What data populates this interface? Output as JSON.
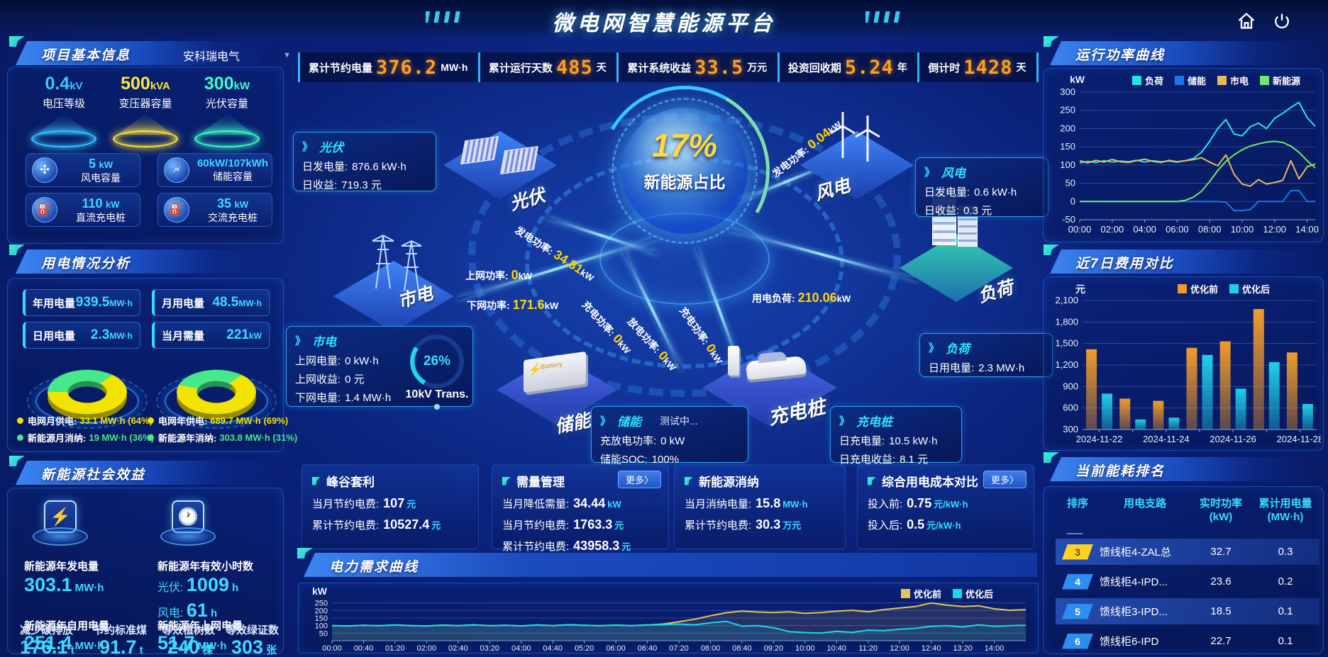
{
  "header": {
    "title": "微电网智慧能源平台"
  },
  "top_stats": [
    {
      "label": "累计节约电量",
      "value": "376.2",
      "unit": "MW·h"
    },
    {
      "label": "累计运行天数",
      "value": "485",
      "unit": "天"
    },
    {
      "label": "累计系统收益",
      "value": "33.5",
      "unit": "万元"
    },
    {
      "label": "投资回收期",
      "value": "5.24",
      "unit": "年"
    },
    {
      "label": "倒计时",
      "value": "1428",
      "unit": "天"
    }
  ],
  "project_info": {
    "title": "项目基本信息",
    "company": "安科瑞电气",
    "spotlights": [
      {
        "value": "0.4",
        "unit": "kV",
        "label": "电压等级",
        "color": "#35c9ff"
      },
      {
        "value": "500",
        "unit": "kVA",
        "label": "变压器容量",
        "color": "#ffe63a"
      },
      {
        "value": "300",
        "unit": "kW",
        "label": "光伏容量",
        "color": "#3dffc8"
      }
    ],
    "cards": [
      {
        "value": "5",
        "unit": "kW",
        "label": "风电容量",
        "icon": "wind-turbine-icon",
        "glyph": "✣"
      },
      {
        "value": "60kW/107kWh",
        "unit": "",
        "label": "储能容量",
        "icon": "battery-icon",
        "glyph": "🗲"
      },
      {
        "value": "110",
        "unit": "kW",
        "label": "直流充电桩",
        "icon": "dc-charger-icon",
        "glyph": "⛽"
      },
      {
        "value": "35",
        "unit": "kW",
        "label": "交流充电桩",
        "icon": "ac-charger-icon",
        "glyph": "⛽"
      }
    ]
  },
  "power_usage": {
    "title": "用电情况分析",
    "cards": [
      {
        "label": "年用电量",
        "value": "939.5",
        "unit": "MW·h"
      },
      {
        "label": "月用电量",
        "value": "48.5",
        "unit": "MW·h"
      },
      {
        "label": "日用电量",
        "value": "2.3",
        "unit": "MW·h"
      },
      {
        "label": "当月需量",
        "value": "221",
        "unit": "kW"
      }
    ],
    "donuts": [
      {
        "legend": [
          {
            "label": "电网月供电:",
            "value": "33.1 MW·h (64%)",
            "color": "#f0e400",
            "pct": 64
          },
          {
            "label": "新能源月消纳:",
            "value": "19 MW·h (36%)",
            "color": "#46e88a",
            "pct": 36
          }
        ]
      },
      {
        "legend": [
          {
            "label": "电网年供电:",
            "value": "689.7 MW·h (69%)",
            "color": "#f0e400",
            "pct": 69
          },
          {
            "label": "新能源年消纳:",
            "value": "303.8 MW·h (31%)",
            "color": "#46e88a",
            "pct": 31
          }
        ]
      }
    ]
  },
  "social_benefit": {
    "title": "新能源社会效益",
    "gen_label": "新能源年发电量",
    "gen_value": "303.1",
    "gen_unit": "MW·h",
    "hours_label": "新能源年有效小时数",
    "pv_hours_label": "光伏:",
    "pv_hours_value": "1009",
    "pv_hours_unit": "h",
    "wind_hours_label": "风电:",
    "wind_hours_value": "61",
    "wind_hours_unit": "h",
    "self_label": "新能源年自用电量",
    "self_value": "251.4",
    "self_unit": "MW·h",
    "export_label": "新能源年上网电量",
    "export_value": "51.7",
    "export_unit": "MW·h",
    "co2_label": "减少碳排放",
    "co2_value": "176.1",
    "co2_unit": "t",
    "coal_label": "节约标准煤",
    "coal_value": "91.7",
    "coal_unit": "t",
    "tree_label": "等效植树数",
    "tree_value": "240",
    "tree_unit": "棵",
    "cert_label": "等效绿证数",
    "cert_value": "303",
    "cert_unit": "张"
  },
  "scene": {
    "center_pct": "17%",
    "center_label": "新能源占比",
    "node_labels": {
      "pv": "光伏",
      "wind": "风电",
      "grid": "市电",
      "storage": "储能",
      "charger": "充电桩",
      "load": "负荷"
    },
    "transformer": {
      "pct": "26%",
      "pct_num": 26,
      "label": "10kV Trans."
    },
    "boxes": {
      "pv": {
        "title": "光伏",
        "rows": [
          {
            "k": "日发电量:",
            "v": "876.6 kW·h"
          },
          {
            "k": "日收益:",
            "v": "719.3 元"
          }
        ]
      },
      "wind": {
        "title": "风电",
        "rows": [
          {
            "k": "日发电量:",
            "v": "0.6 kW·h"
          },
          {
            "k": "日收益:",
            "v": "0.3 元"
          }
        ]
      },
      "grid": {
        "title": "市电",
        "rows": [
          {
            "k": "上网电量:",
            "v": "0 kW·h"
          },
          {
            "k": "上网收益:",
            "v": "0 元"
          },
          {
            "k": "下网电量:",
            "v": "1.4 MW·h"
          }
        ]
      },
      "storage": {
        "title": "储能",
        "badge": "测试中...",
        "rows": [
          {
            "k": "充放电功率:",
            "v": "0 kW"
          },
          {
            "k": "储能SOC:",
            "v": "100%"
          }
        ]
      },
      "charger": {
        "title": "充电桩",
        "rows": [
          {
            "k": "日充电量:",
            "v": "10.5 kW·h"
          },
          {
            "k": "日充电收益:",
            "v": "8.1 元"
          }
        ]
      },
      "load": {
        "title": "负荷",
        "rows": [
          {
            "k": "日用电量:",
            "v": "2.3 MW·h"
          }
        ]
      }
    },
    "flows": [
      {
        "id": "f_pv",
        "label": "发电功率:",
        "value": "34.81",
        "unit": "kW"
      },
      {
        "id": "f_windp",
        "label": "发电功率:",
        "value": "0.04",
        "unit": "kW"
      },
      {
        "id": "f_up",
        "label": "上网功率:",
        "value": "0",
        "unit": "kW"
      },
      {
        "id": "f_down",
        "label": "下网功率:",
        "value": "171.6",
        "unit": "kW"
      },
      {
        "id": "f_chg_st",
        "label": "充电功率:",
        "value": "0",
        "unit": "kW"
      },
      {
        "id": "f_dis_st",
        "label": "放电功率:",
        "value": "0",
        "unit": "kW"
      },
      {
        "id": "f_chg_ev",
        "label": "充电功率:",
        "value": "0",
        "unit": "kW"
      },
      {
        "id": "f_load",
        "label": "用电负荷:",
        "value": "210.06",
        "unit": "kW"
      }
    ]
  },
  "benefit_panels": [
    {
      "title": "峰谷套利",
      "more": false,
      "rows": [
        {
          "k": "当月节约电费:",
          "v": "107",
          "u": "元"
        },
        {
          "k": "累计节约电费:",
          "v": "10527.4",
          "u": "元"
        }
      ]
    },
    {
      "title": "需量管理",
      "more": true,
      "rows": [
        {
          "k": "当月降低需量:",
          "v": "34.44",
          "u": "kW"
        },
        {
          "k": "当月节约电费:",
          "v": "1763.3",
          "u": "元"
        },
        {
          "k": "累计节约电费:",
          "v": "43958.3",
          "u": "元"
        }
      ]
    },
    {
      "title": "新能源消纳",
      "more": false,
      "rows": [
        {
          "k": "当月消纳电量:",
          "v": "15.8",
          "u": "MW·h"
        },
        {
          "k": "累计节约电费:",
          "v": "30.3",
          "u": "万元"
        }
      ]
    },
    {
      "title": "综合用电成本对比",
      "more": true,
      "rows": [
        {
          "k": "投入前:",
          "v": "0.75",
          "u": "元/kW·h"
        },
        {
          "k": "投入后:",
          "v": "0.5",
          "u": "元/kW·h"
        }
      ]
    }
  ],
  "more_label": "更多〉",
  "ranking": {
    "title": "当前能耗排名",
    "headers": [
      {
        "t": "排序",
        "u": ""
      },
      {
        "t": "用电支路",
        "u": ""
      },
      {
        "t": "实时功率",
        "u": "(kW)"
      },
      {
        "t": "累计用电量",
        "u": "(MW·h)"
      }
    ],
    "rows": [
      {
        "rank": "3",
        "branch": "馈线柜4-ZAL总",
        "power": "32.7",
        "energy": "0.3",
        "badge": "yellow",
        "highlight": true
      },
      {
        "rank": "4",
        "branch": "馈线柜4-IPD...",
        "power": "23.6",
        "energy": "0.2",
        "badge": "blue",
        "highlight": false
      },
      {
        "rank": "5",
        "branch": "馈线柜3-IPD...",
        "power": "18.5",
        "energy": "0.1",
        "badge": "blue",
        "highlight": true
      },
      {
        "rank": "6",
        "branch": "馈线柜6-IPD",
        "power": "22.7",
        "energy": "0.1",
        "badge": "blue",
        "highlight": false
      }
    ]
  },
  "chart_data": [
    {
      "type": "line",
      "title": "运行功率曲线",
      "unit": "kW",
      "ylim": [
        -50,
        300
      ],
      "yticks": [
        -50,
        0,
        50,
        100,
        150,
        200,
        250,
        300
      ],
      "xtick_labels": [
        "00:00",
        "02:00",
        "04:00",
        "06:00",
        "08:00",
        "10:00",
        "12:00",
        "14:00"
      ],
      "xtick_step": 4,
      "legend_position": "top",
      "grid": true,
      "series": [
        {
          "name": "负荷",
          "color": "#1ee7e7",
          "values": [
            106,
            110,
            107,
            112,
            108,
            111,
            109,
            113,
            108,
            112,
            109,
            111,
            108,
            112,
            118,
            135,
            165,
            200,
            225,
            185,
            180,
            205,
            215,
            200,
            228,
            242,
            258,
            272,
            230,
            206
          ]
        },
        {
          "name": "储能",
          "color": "#1778e8",
          "values": [
            0,
            0,
            0,
            0,
            0,
            0,
            0,
            0,
            0,
            0,
            0,
            0,
            0,
            0,
            0,
            0,
            0,
            0,
            -2,
            -25,
            -25,
            -22,
            0,
            0,
            0,
            0,
            30,
            30,
            0,
            0
          ]
        },
        {
          "name": "市电",
          "color": "#e8b95a",
          "values": [
            112,
            106,
            113,
            108,
            115,
            109,
            107,
            112,
            116,
            110,
            107,
            113,
            109,
            112,
            115,
            120,
            108,
            98,
            128,
            75,
            48,
            42,
            60,
            48,
            52,
            58,
            112,
            62,
            95,
            103
          ]
        },
        {
          "name": "新能源",
          "color": "#6ee86e",
          "values": [
            0,
            0,
            0,
            0,
            0,
            0,
            0,
            0,
            0,
            0,
            0,
            0,
            0,
            3,
            12,
            28,
            55,
            85,
            110,
            128,
            142,
            152,
            158,
            163,
            165,
            162,
            152,
            135,
            112,
            92
          ]
        }
      ]
    },
    {
      "type": "bar",
      "title": "近7日费用对比",
      "unit": "元",
      "ylim": [
        300,
        2100
      ],
      "yticks": [
        300,
        600,
        900,
        1200,
        1500,
        1800,
        2100
      ],
      "categories": [
        "2024-11-22",
        "2024-11-23",
        "2024-11-24",
        "2024-11-25",
        "2024-11-26",
        "2024-11-27",
        "2024-11-28"
      ],
      "xtick_labels": [
        "2024-11-22",
        "2024-11-24",
        "2024-11-26",
        "2024-11-28"
      ],
      "xtick_step": 2,
      "legend_position": "top",
      "grid": true,
      "series": [
        {
          "name": "优化前",
          "color": "#f29b2a",
          "values": [
            1420,
            730,
            700,
            1440,
            1530,
            1980,
            1375
          ]
        },
        {
          "name": "优化后",
          "color": "#1fd0ea",
          "values": [
            800,
            440,
            465,
            1340,
            870,
            1240,
            655
          ]
        }
      ]
    },
    {
      "type": "line",
      "title": "电力需求曲线",
      "unit": "kW",
      "ylim": [
        0,
        300
      ],
      "yticks": [
        50,
        100,
        150,
        200,
        250
      ],
      "xtick_labels": [
        "00:00",
        "00:40",
        "01:20",
        "02:00",
        "02:40",
        "03:20",
        "04:00",
        "04:40",
        "05:20",
        "06:00",
        "06:40",
        "07:20",
        "08:00",
        "08:40",
        "09:20",
        "10:00",
        "10:40",
        "11:20",
        "12:00",
        "12:40",
        "13:20",
        "14:00"
      ],
      "xtick_step": 2,
      "legend_position": "top-right",
      "grid": true,
      "area_fill": true,
      "series": [
        {
          "name": "优化前",
          "color": "#e8c25a",
          "values": [
            100,
            97,
            102,
            99,
            104,
            100,
            97,
            103,
            100,
            105,
            99,
            102,
            98,
            104,
            100,
            106,
            102,
            99,
            103,
            100,
            104,
            110,
            125,
            142,
            165,
            185,
            196,
            190,
            186,
            191,
            181,
            186,
            195,
            201,
            191,
            206,
            216,
            226,
            250,
            236,
            226,
            231,
            211,
            201,
            206
          ]
        },
        {
          "name": "优化后",
          "color": "#19d8e8",
          "values": [
            100,
            97,
            102,
            99,
            104,
            100,
            97,
            103,
            100,
            105,
            99,
            102,
            98,
            104,
            100,
            106,
            102,
            99,
            103,
            100,
            104,
            107,
            110,
            105,
            118,
            128,
            96,
            100,
            86,
            60,
            54,
            50,
            62,
            55,
            70,
            66,
            76,
            82,
            95,
            100,
            90,
            105,
            95,
            100,
            102
          ]
        }
      ]
    }
  ]
}
